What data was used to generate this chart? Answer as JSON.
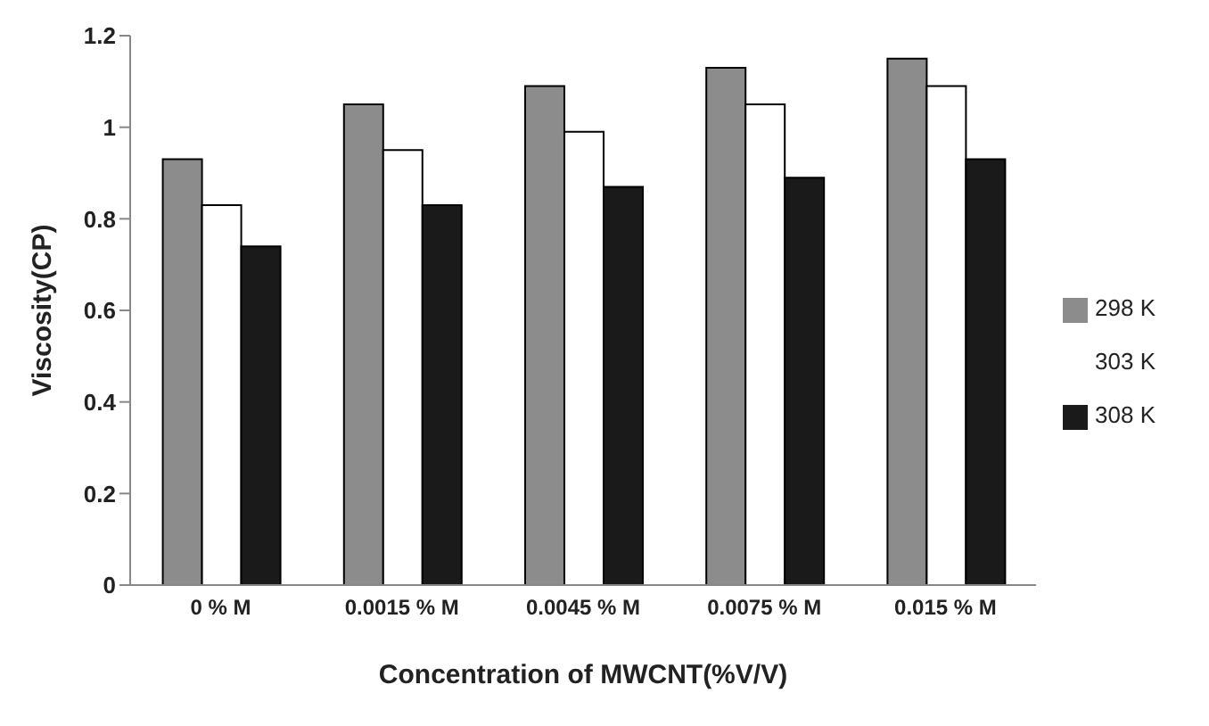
{
  "chart_data": {
    "type": "bar",
    "xlabel": "Concentration of MWCNT(%V/V)",
    "ylabel": "Viscosity(CP)",
    "categories": [
      "0 % M",
      "0.0015 % M",
      "0.0045 % M",
      "0.0075 % M",
      "0.015 % M"
    ],
    "series": [
      {
        "name": "298 K",
        "color": "#8c8c8c",
        "values": [
          0.93,
          1.05,
          1.09,
          1.13,
          1.15
        ]
      },
      {
        "name": "303 K",
        "color": "#ffffff",
        "values": [
          0.83,
          0.95,
          0.99,
          1.05,
          1.09
        ]
      },
      {
        "name": "308 K",
        "color": "#1a1a1a",
        "values": [
          0.74,
          0.83,
          0.87,
          0.89,
          0.93
        ]
      }
    ],
    "ylim": [
      0,
      1.2
    ],
    "yticks": [
      0,
      0.2,
      0.4,
      0.6,
      0.8,
      1,
      1.2
    ],
    "grid": false,
    "legend": "right"
  }
}
